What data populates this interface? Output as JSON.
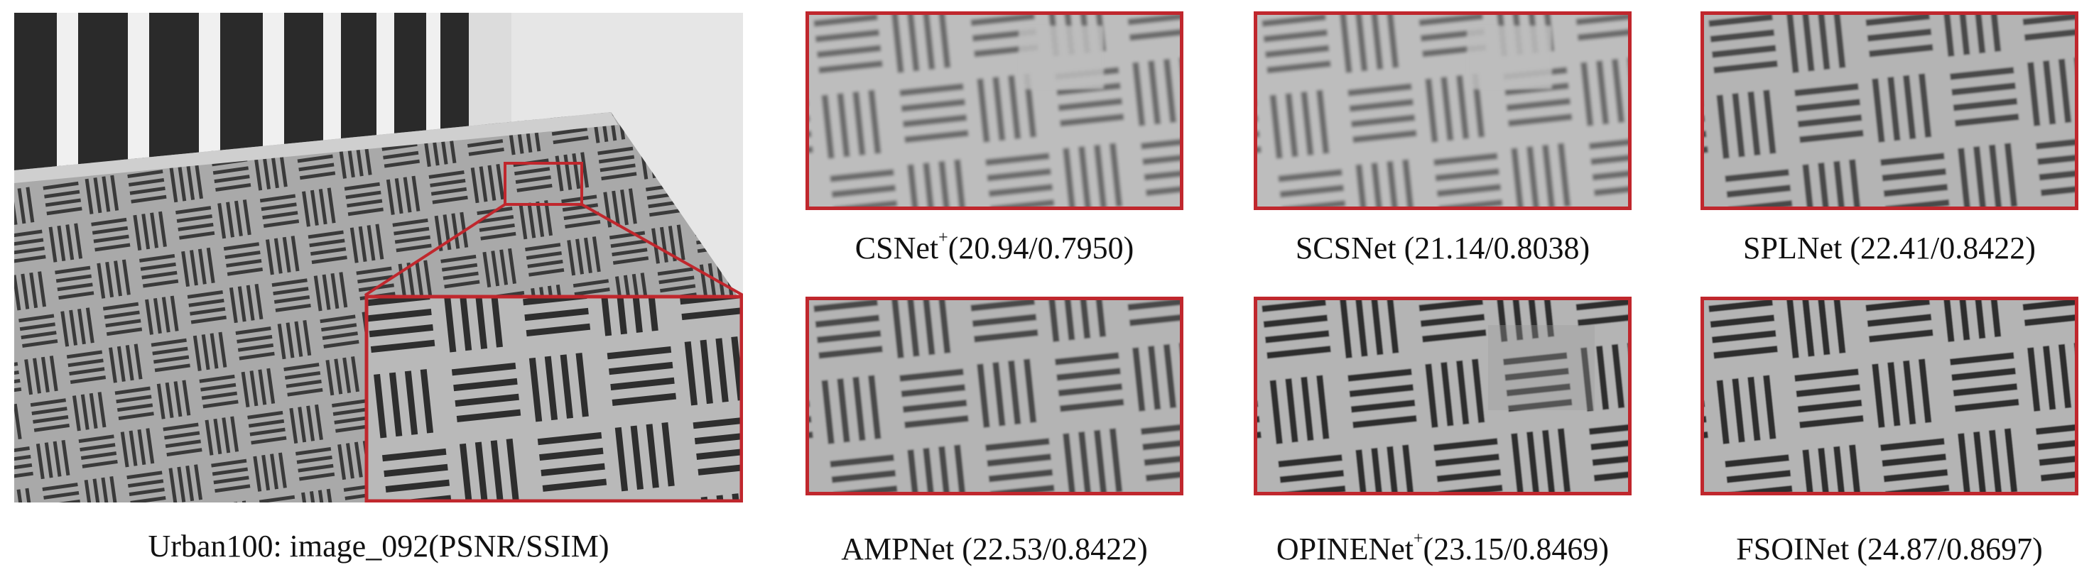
{
  "figure": {
    "main_caption": "Urban100: image_092(PSNR/SSIM)",
    "panels": [
      {
        "method": "CSNet",
        "sup": "+",
        "score": "(20.94/0.7950)",
        "pattern": "blurry"
      },
      {
        "method": "SCSNet ",
        "sup": "",
        "score": "(21.14/0.8038)",
        "pattern": "blurry"
      },
      {
        "method": "SPLNet ",
        "sup": "",
        "score": "(22.41/0.8422)",
        "pattern": "medium"
      },
      {
        "method": "AMPNet ",
        "sup": "",
        "score": "(22.53/0.8422)",
        "pattern": "medium"
      },
      {
        "method": "OPINENet",
        "sup": "+",
        "score": "(23.15/0.8469)",
        "pattern": "noisy"
      },
      {
        "method": "FSOINet ",
        "sup": "",
        "score": "(24.87/0.8697)",
        "pattern": "sharp"
      }
    ],
    "highlight_color": "#c0272d"
  }
}
